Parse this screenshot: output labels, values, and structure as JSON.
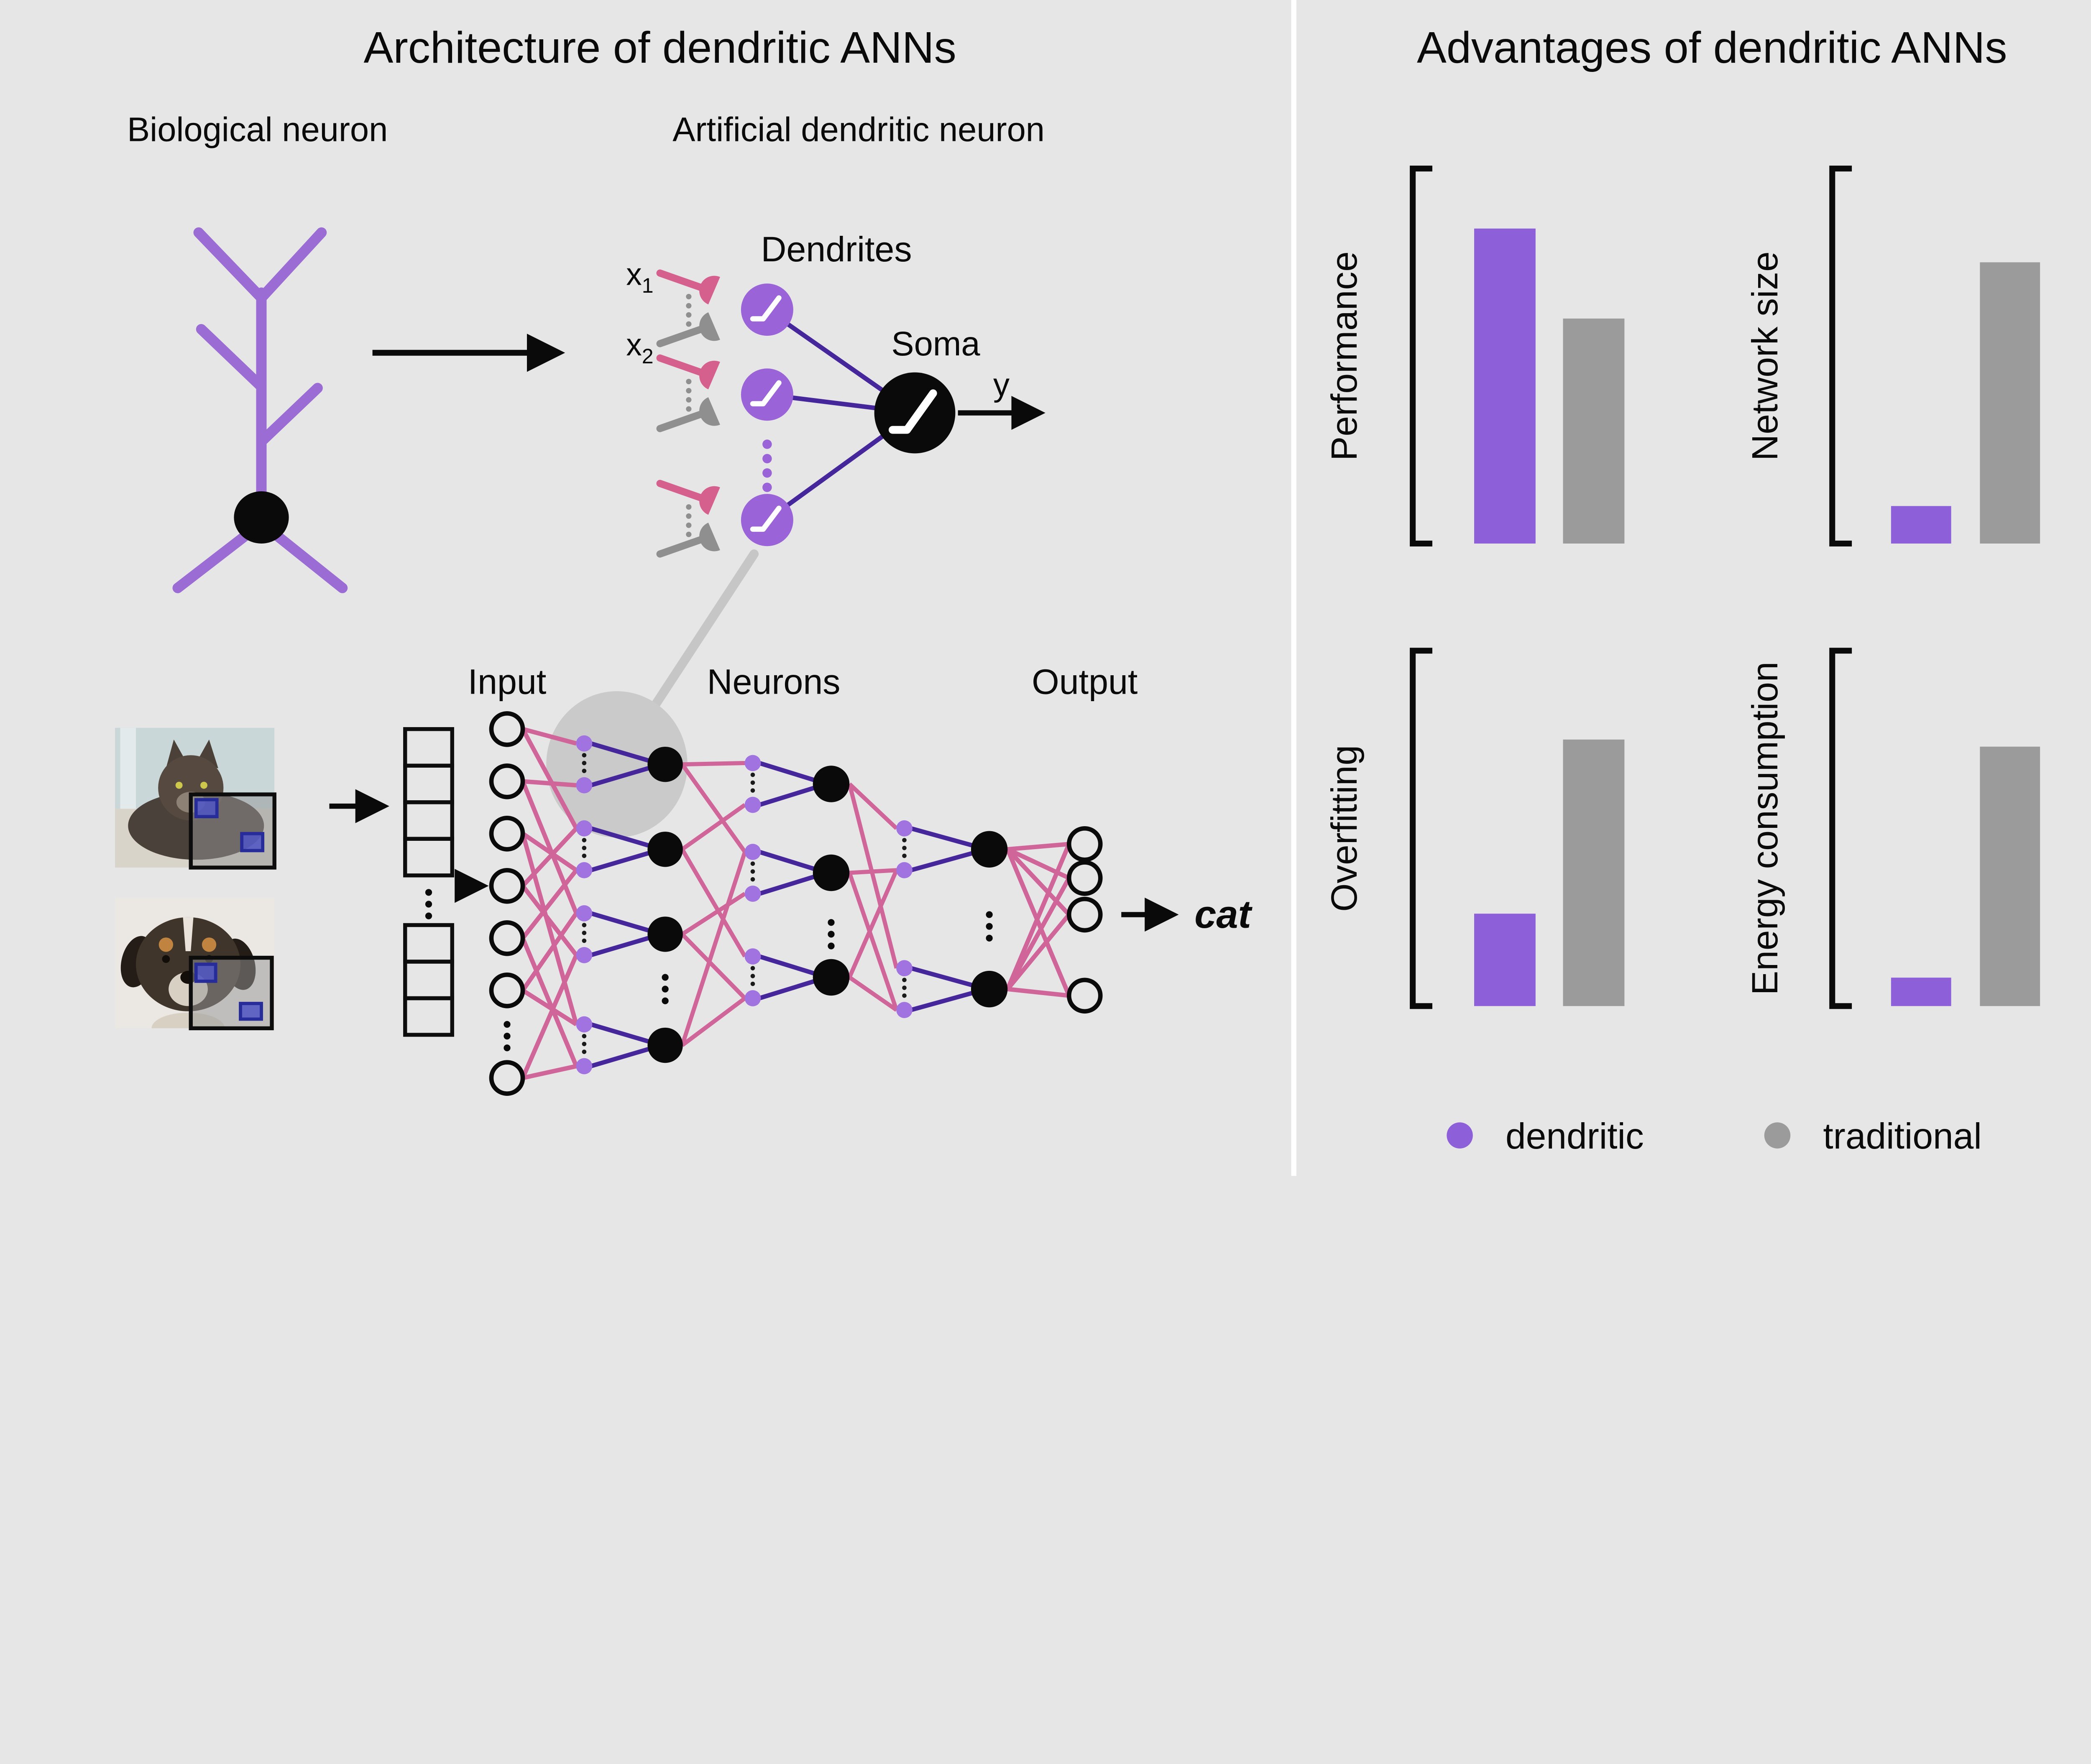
{
  "canvas": {
    "background": "#e6e6e6",
    "divider_color": "#ffffff"
  },
  "left_panel": {
    "title": "Architecture of dendritic ANNs",
    "biological_neuron": {
      "label": "Biological neuron"
    },
    "artificial_neuron": {
      "label": "Artificial dendritic neuron",
      "dendrites_label": "Dendrites",
      "soma_label": "Soma",
      "x1_base": "x",
      "x1_sub": "1",
      "x2_base": "x",
      "x2_sub": "2",
      "y_label": "y"
    },
    "network_diagram": {
      "input_label": "Input",
      "neurons_label": "Neurons",
      "output_label": "Output",
      "prediction_label": "cat",
      "visible_input_nodes": 7,
      "visible_dendritic_units_per_layer": [
        4,
        3,
        2
      ],
      "visible_output_nodes": 4
    }
  },
  "right_panel": {
    "title": "Advantages of dendritic ANNs",
    "legend": [
      {
        "label": "dendritic",
        "color": "#8d5fd8"
      },
      {
        "label": "traditional",
        "color": "#9b9b9b"
      }
    ]
  },
  "chart_data": [
    {
      "type": "bar",
      "title": "Performance",
      "categories": [
        "dendritic",
        "traditional"
      ],
      "values": [
        0.84,
        0.6
      ],
      "ylim": [
        0,
        1
      ],
      "colors": [
        "#8d5fd8",
        "#9b9b9b"
      ],
      "xlabel": "",
      "ylabel": "Performance",
      "grid": false,
      "legend_position": "shared-bottom"
    },
    {
      "type": "bar",
      "title": "Network size",
      "categories": [
        "dendritic",
        "traditional"
      ],
      "values": [
        0.1,
        0.75
      ],
      "ylim": [
        0,
        1
      ],
      "colors": [
        "#8d5fd8",
        "#9b9b9b"
      ],
      "xlabel": "",
      "ylabel": "Network size",
      "grid": false,
      "legend_position": "shared-bottom"
    },
    {
      "type": "bar",
      "title": "Overfitting",
      "categories": [
        "dendritic",
        "traditional"
      ],
      "values": [
        0.26,
        0.75
      ],
      "ylim": [
        0,
        1
      ],
      "colors": [
        "#8d5fd8",
        "#9b9b9b"
      ],
      "xlabel": "",
      "ylabel": "Overfitting",
      "grid": false,
      "legend_position": "shared-bottom"
    },
    {
      "type": "bar",
      "title": "Energy consumption",
      "categories": [
        "dendritic",
        "traditional"
      ],
      "values": [
        0.08,
        0.73
      ],
      "ylim": [
        0,
        1
      ],
      "colors": [
        "#8d5fd8",
        "#9b9b9b"
      ],
      "xlabel": "",
      "ylabel": "Energy consumption",
      "grid": false,
      "legend_position": "shared-bottom"
    }
  ],
  "colors": {
    "biological_purple": "#9a6cd4",
    "dendrite_fill_purple": "#9b63d8",
    "dendrite_dot_purple": "#a173e0",
    "deep_purple_connection": "#46279b",
    "pink_connection": "#d0659a",
    "synapse_pink": "#d5608d",
    "synapse_gray": "#8f8f8f",
    "soma_black": "#0a0a0a",
    "highlight_gray": "#cacaca"
  }
}
